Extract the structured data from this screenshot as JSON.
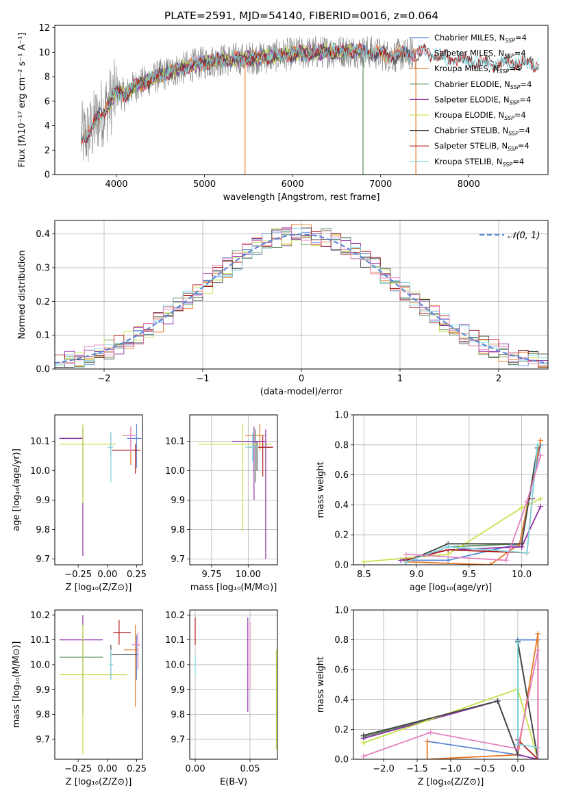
{
  "figure_title": "PLATE=2591, MJD=54140, FIBERID=0016, z=0.064",
  "colors": {
    "blue": "#5b87d4",
    "orange": "#e87722",
    "green": "#5a8f5a",
    "purple": "#8e2fa8",
    "lime": "#c8e04a",
    "black": "#444444",
    "red": "#b01818",
    "cyan": "#7fd6e0",
    "grey": "#7f7f7f",
    "pink": "#e47fbe",
    "gauss": "#5b87d4"
  },
  "chart_data": [
    {
      "id": "spectrum",
      "type": "line",
      "xlabel": "wavelength [Angstrom, rest frame]",
      "ylabel": "Flux [fλ10⁻¹⁷ erg cm⁻² s⁻¹ A⁻¹]",
      "xlim": [
        3300,
        8900
      ],
      "ylim": [
        0,
        12.2
      ],
      "xticks": [
        4000,
        5000,
        6000,
        7000,
        8000
      ],
      "yticks": [
        0,
        2,
        4,
        6,
        8,
        10,
        12
      ],
      "grid": false,
      "legend_position": "upper-right",
      "data_shape": [
        [
          3600,
          3.0
        ],
        [
          3700,
          3.4
        ],
        [
          3800,
          4.8
        ],
        [
          3900,
          5.6
        ],
        [
          4000,
          6.8
        ],
        [
          4100,
          6.5
        ],
        [
          4200,
          7.2
        ],
        [
          4300,
          7.5
        ],
        [
          4500,
          8.1
        ],
        [
          4700,
          8.6
        ],
        [
          4900,
          9.0
        ],
        [
          5100,
          9.3
        ],
        [
          5300,
          9.4
        ],
        [
          5500,
          9.5
        ],
        [
          5700,
          9.6
        ],
        [
          5900,
          9.8
        ],
        [
          6100,
          9.9
        ],
        [
          6300,
          10.0
        ],
        [
          6500,
          10.1
        ],
        [
          6700,
          10.1
        ],
        [
          6900,
          10.0
        ],
        [
          7100,
          9.7
        ],
        [
          7300,
          9.8
        ],
        [
          7500,
          10.0
        ],
        [
          7700,
          9.6
        ],
        [
          7900,
          9.4
        ],
        [
          8100,
          9.2
        ],
        [
          8300,
          9.0
        ],
        [
          8500,
          9.2
        ],
        [
          8800,
          9.0
        ]
      ],
      "series": [
        {
          "name": "Chabrier MILES, N_SSP=4",
          "color_key": "blue",
          "x_range": [
            3600,
            7400
          ]
        },
        {
          "name": "Salpeter MILES, N_SSP=4",
          "color_key": "pink",
          "x_range": [
            3600,
            7400
          ]
        },
        {
          "name": "Kroupa MILES, N_SSP=4",
          "color_key": "orange",
          "x_range": [
            3600,
            7400
          ]
        },
        {
          "name": "Chabrier ELODIE, N_SSP=4",
          "color_key": "green",
          "x_range": [
            3900,
            6800
          ]
        },
        {
          "name": "Salpeter ELODIE, N_SSP=4",
          "color_key": "purple",
          "x_range": [
            3900,
            6800
          ]
        },
        {
          "name": "Kroupa ELODIE, N_SSP=4",
          "color_key": "lime",
          "x_range": [
            3900,
            6800
          ]
        },
        {
          "name": "Chabrier STELIB, N_SSP=4",
          "color_key": "black",
          "x_range": [
            3600,
            8800
          ]
        },
        {
          "name": "Salpeter STELIB, N_SSP=4",
          "color_key": "red",
          "x_range": [
            3600,
            8800
          ]
        },
        {
          "name": "Kroupa STELIB, N_SSP=4",
          "color_key": "cyan",
          "x_range": [
            3600,
            8800
          ]
        }
      ],
      "data_line": {
        "color_key": "grey",
        "x_range": [
          3600,
          7400
        ]
      }
    },
    {
      "id": "residuals",
      "type": "histogram",
      "xlabel": "(data-model)/error",
      "ylabel": "Normed distribution",
      "xlim": [
        -2.5,
        2.5
      ],
      "ylim": [
        0,
        0.44
      ],
      "xticks": [
        -2,
        -1,
        0,
        1,
        2
      ],
      "yticks": [
        0.0,
        0.1,
        0.2,
        0.3,
        0.4
      ],
      "grid": true,
      "legend": [
        "𝒩(0, 1)"
      ],
      "legend_position": "upper-right",
      "bin_width": 0.1,
      "hist_colors": [
        "blue",
        "orange",
        "green",
        "purple",
        "lime",
        "black",
        "red",
        "cyan",
        "pink"
      ]
    },
    {
      "id": "z_age",
      "type": "errorbar",
      "xlabel": "Z [log₁₀(Z/Z⊙)]",
      "ylabel": "age  [log₁₀(age/yr)]",
      "xlim": [
        -0.45,
        0.3
      ],
      "ylim": [
        9.68,
        10.19
      ],
      "xticks": [
        -0.25,
        0.0,
        0.25
      ],
      "yticks": [
        9.7,
        9.8,
        9.9,
        10.0,
        10.1
      ],
      "grid": false,
      "points": [
        {
          "color": "blue",
          "x": 0.25,
          "y": 10.11,
          "xerr": [
            0.08,
            0.04
          ],
          "yerr": [
            0.1,
            0.05
          ]
        },
        {
          "color": "orange",
          "x": 0.2,
          "y": 10.12,
          "xerr": [
            0.07,
            0.05
          ],
          "yerr": [
            0.1,
            0.03
          ]
        },
        {
          "color": "green",
          "x": -0.21,
          "y": 10.11,
          "xerr": [
            0.2,
            0.0
          ],
          "yerr": [
            0.2,
            0.04
          ]
        },
        {
          "color": "purple",
          "x": -0.21,
          "y": 10.11,
          "xerr": [
            0.2,
            0.0
          ],
          "yerr": [
            0.4,
            0.04
          ]
        },
        {
          "color": "lime",
          "x": -0.21,
          "y": 10.09,
          "xerr": [
            0.2,
            0.28
          ],
          "yerr": [
            0.2,
            0.07
          ]
        },
        {
          "color": "black",
          "x": 0.03,
          "y": 10.08,
          "xerr": [
            0.0,
            0.0
          ],
          "yerr": [
            0.03,
            0.05
          ]
        },
        {
          "color": "red",
          "x": 0.24,
          "y": 10.07,
          "xerr": [
            0.2,
            0.04
          ],
          "yerr": [
            0.08,
            0.02
          ]
        },
        {
          "color": "cyan",
          "x": 0.03,
          "y": 10.08,
          "xerr": [
            0.03,
            0.02
          ],
          "yerr": [
            0.12,
            0.05
          ]
        },
        {
          "color": "pink",
          "x": 0.2,
          "y": 10.12,
          "xerr": [
            0.05,
            0.05
          ],
          "yerr": [
            0.06,
            0.03
          ]
        }
      ]
    },
    {
      "id": "mass_age",
      "type": "errorbar",
      "xlabel": "mass [log₁₀(M/M⊙)]",
      "ylabel": "",
      "xlim": [
        9.6,
        10.2
      ],
      "ylim": [
        9.68,
        10.19
      ],
      "xticks": [
        9.75,
        10.0
      ],
      "yticks": [
        9.7,
        9.8,
        9.9,
        10.0,
        10.1
      ],
      "grid": true,
      "points": [
        {
          "color": "blue",
          "x": 10.04,
          "y": 10.1,
          "xerr": [
            0.05,
            0.08
          ],
          "yerr": [
            0.1,
            0.02
          ]
        },
        {
          "color": "orange",
          "x": 10.08,
          "y": 10.12,
          "xerr": [
            0.1,
            0.04
          ],
          "yerr": [
            0.05,
            0.04
          ]
        },
        {
          "color": "green",
          "x": 10.05,
          "y": 10.08,
          "xerr": [
            0.0,
            0.04
          ],
          "yerr": [
            0.12,
            0.06
          ]
        },
        {
          "color": "purple",
          "x": 10.04,
          "y": 10.1,
          "xerr": [
            0.15,
            0.08
          ],
          "yerr": [
            0.2,
            0.05
          ]
        },
        {
          "color": "lime",
          "x": 9.96,
          "y": 10.09,
          "xerr": [
            0.3,
            0.2
          ],
          "yerr": [
            0.3,
            0.07
          ]
        },
        {
          "color": "black",
          "x": 10.06,
          "y": 10.08,
          "xerr": [
            0.0,
            0.1
          ],
          "yerr": [
            0.08,
            0.02
          ]
        },
        {
          "color": "red",
          "x": 10.1,
          "y": 10.08,
          "xerr": [
            0.1,
            0.07
          ],
          "yerr": [
            0.1,
            0.04
          ]
        },
        {
          "color": "cyan",
          "x": 10.03,
          "y": 10.08,
          "xerr": [
            0.05,
            0.04
          ],
          "yerr": [
            0.05,
            0.05
          ]
        },
        {
          "color": "purple",
          "x": 10.12,
          "y": 10.1,
          "xerr": [
            0.1,
            0.0
          ],
          "yerr": [
            0.4,
            0.04
          ]
        }
      ]
    },
    {
      "id": "age_weight",
      "type": "line",
      "xlabel": "age  [log₁₀(age/yr)]",
      "ylabel": "mass weight",
      "xlim": [
        8.4,
        10.25
      ],
      "ylim": [
        0,
        1.0
      ],
      "xticks": [
        8.5,
        9.0,
        9.5,
        10.0
      ],
      "yticks": [
        0.0,
        0.2,
        0.4,
        0.6,
        0.8,
        1.0
      ],
      "grid": true,
      "series": [
        {
          "color": "blue",
          "x": [
            8.9,
            9.3,
            9.98,
            10.18
          ],
          "y": [
            0.03,
            0.03,
            0.14,
            0.8
          ]
        },
        {
          "color": "orange",
          "x": [
            8.9,
            9.7,
            9.98,
            10.18
          ],
          "y": [
            0.02,
            0.0,
            0.14,
            0.83
          ]
        },
        {
          "color": "green",
          "x": [
            8.9,
            9.3,
            10.0,
            10.15
          ],
          "y": [
            0.02,
            0.12,
            0.14,
            0.78
          ]
        },
        {
          "color": "purple",
          "x": [
            8.85,
            9.3,
            10.0,
            10.18
          ],
          "y": [
            0.03,
            0.1,
            0.12,
            0.39
          ]
        },
        {
          "color": "lime",
          "x": [
            8.5,
            9.3,
            10.0,
            10.18
          ],
          "y": [
            0.02,
            0.07,
            0.38,
            0.44
          ]
        },
        {
          "color": "black",
          "x": [
            8.9,
            9.3,
            10.0,
            10.15
          ],
          "y": [
            0.02,
            0.14,
            0.14,
            0.78
          ]
        },
        {
          "color": "red",
          "x": [
            8.9,
            9.3,
            10.05,
            10.1
          ],
          "y": [
            0.03,
            0.1,
            0.08,
            0.44
          ]
        },
        {
          "color": "cyan",
          "x": [
            8.9,
            9.3,
            10.05,
            10.15
          ],
          "y": [
            0.02,
            0.12,
            0.08,
            0.8
          ]
        },
        {
          "color": "pink",
          "x": [
            8.9,
            9.85,
            10.05,
            10.18
          ],
          "y": [
            0.07,
            0.03,
            0.42,
            0.73
          ]
        }
      ]
    },
    {
      "id": "z_mass",
      "type": "errorbar",
      "xlabel": "Z [log₁₀(Z/Z⊙)]",
      "ylabel": "mass [log₁₀(M/M⊙)]",
      "xlim": [
        -0.45,
        0.3
      ],
      "ylim": [
        9.62,
        10.22
      ],
      "xticks": [
        -0.25,
        0.0,
        0.25
      ],
      "yticks": [
        9.7,
        9.8,
        9.9,
        10.0,
        10.1,
        10.2
      ],
      "grid": false,
      "points": [
        {
          "color": "blue",
          "x": 0.25,
          "y": 10.04,
          "xerr": [
            0.1,
            0.02
          ],
          "yerr": [
            0.1,
            0.08
          ]
        },
        {
          "color": "orange",
          "x": 0.24,
          "y": 10.06,
          "xerr": [
            0.1,
            0.02
          ],
          "yerr": [
            0.23,
            0.1
          ]
        },
        {
          "color": "green",
          "x": -0.21,
          "y": 10.03,
          "xerr": [
            0.2,
            0.17
          ],
          "yerr": [
            0.22,
            0.1
          ]
        },
        {
          "color": "purple",
          "x": -0.21,
          "y": 10.1,
          "xerr": [
            0.2,
            0.17
          ],
          "yerr": [
            0.3,
            0.1
          ]
        },
        {
          "color": "lime",
          "x": -0.21,
          "y": 9.96,
          "xerr": [
            0.2,
            0.38
          ],
          "yerr": [
            0.32,
            0.2
          ]
        },
        {
          "color": "black",
          "x": 0.03,
          "y": 10.04,
          "xerr": [
            0.0,
            0.22
          ],
          "yerr": [
            0.1,
            0.04
          ]
        },
        {
          "color": "red",
          "x": 0.1,
          "y": 10.13,
          "xerr": [
            0.05,
            0.1
          ],
          "yerr": [
            0.05,
            0.05
          ]
        },
        {
          "color": "cyan",
          "x": 0.03,
          "y": 10.0,
          "xerr": [
            0.02,
            0.02
          ],
          "yerr": [
            0.06,
            0.06
          ]
        },
        {
          "color": "pink",
          "x": 0.26,
          "y": 10.08,
          "xerr": [
            0.05,
            0.02
          ],
          "yerr": [
            0.1,
            0.05
          ]
        }
      ]
    },
    {
      "id": "ebv_mass",
      "type": "errorbar",
      "xlabel": "E(B-V)",
      "ylabel": "",
      "xlim": [
        -0.005,
        0.075
      ],
      "ylim": [
        9.62,
        10.22
      ],
      "xticks": [
        0.0,
        0.05
      ],
      "yticks": [
        9.7,
        9.8,
        9.9,
        10.0,
        10.1,
        10.2
      ],
      "grid": true,
      "points": [
        {
          "color": "red",
          "x": 0.0,
          "y": 10.12,
          "xerr": [
            0.0,
            0.0
          ],
          "yerr": [
            0.04,
            0.07
          ]
        },
        {
          "color": "cyan",
          "x": 0.0,
          "y": 10.0,
          "xerr": [
            0.0,
            0.0
          ],
          "yerr": [
            0.04,
            0.04
          ]
        },
        {
          "color": "purple",
          "x": 0.048,
          "y": 10.0,
          "xerr": [
            0.0,
            0.0
          ],
          "yerr": [
            0.19,
            0.19
          ]
        },
        {
          "color": "pink",
          "x": 0.05,
          "y": 10.05,
          "xerr": [
            0.0,
            0.0
          ],
          "yerr": [
            0.15,
            0.12
          ]
        },
        {
          "color": "lime",
          "x": 0.074,
          "y": 9.86,
          "xerr": [
            0.0,
            0.0
          ],
          "yerr": [
            0.2,
            0.2
          ]
        }
      ]
    },
    {
      "id": "z_weight",
      "type": "line",
      "xlabel": "Z [log₁₀(Z/Z⊙)]",
      "ylabel": "mass weight",
      "xlim": [
        -2.45,
        0.45
      ],
      "ylim": [
        0,
        1.0
      ],
      "xticks": [
        -2.0,
        -1.5,
        -1.0,
        -0.5,
        0.0
      ],
      "yticks": [
        0.0,
        0.2,
        0.4,
        0.6,
        0.8,
        1.0
      ],
      "grid": true,
      "series": [
        {
          "color": "blue",
          "x": [
            -1.35,
            0.0,
            0.0,
            0.3,
            0.3
          ],
          "y": [
            0.12,
            0.03,
            0.8,
            0.8,
            0.08
          ]
        },
        {
          "color": "orange",
          "x": [
            -1.35,
            -1.35,
            0.0,
            0.3,
            0.3
          ],
          "y": [
            0.12,
            0.0,
            0.03,
            0.84,
            0.0
          ]
        },
        {
          "color": "green",
          "x": [
            -2.3,
            -0.3,
            0.0,
            0.0,
            0.3
          ],
          "y": [
            0.15,
            0.39,
            0.03,
            0.78,
            0.0
          ]
        },
        {
          "color": "purple",
          "x": [
            -2.3,
            -0.3,
            0.0,
            0.3
          ],
          "y": [
            0.14,
            0.39,
            0.03,
            0.0
          ]
        },
        {
          "color": "lime",
          "x": [
            -2.3,
            0.0,
            0.3
          ],
          "y": [
            0.11,
            0.47,
            0.0
          ]
        },
        {
          "color": "black",
          "x": [
            -2.3,
            -0.3,
            0.0,
            0.0,
            0.3
          ],
          "y": [
            0.16,
            0.39,
            0.03,
            0.79,
            0.0
          ]
        },
        {
          "color": "red",
          "x": [
            0.0,
            0.3
          ],
          "y": [
            0.13,
            0.0
          ]
        },
        {
          "color": "cyan",
          "x": [
            0.0,
            0.0,
            0.3,
            0.3
          ],
          "y": [
            0.78,
            0.1,
            0.08,
            0.0
          ]
        },
        {
          "color": "pink",
          "x": [
            -2.3,
            -1.3,
            0.0,
            0.3,
            0.3
          ],
          "y": [
            0.02,
            0.18,
            0.07,
            0.73,
            0.0
          ]
        }
      ]
    }
  ]
}
